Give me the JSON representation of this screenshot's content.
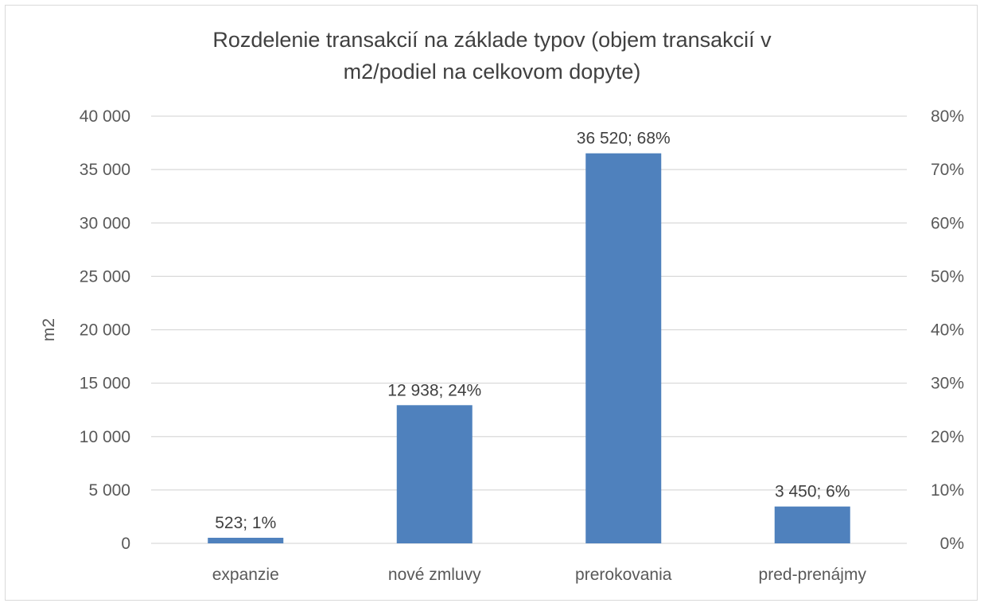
{
  "chart_data": {
    "type": "bar",
    "title": "Rozdelenie transakcií na základe typov (objem transakcií v\nm2/podiel na celkovom dopyte)",
    "categories": [
      "expanzie",
      "nové zmluvy",
      "prerokovania",
      "pred-prenájmy"
    ],
    "values": [
      523,
      12938,
      36520,
      3450
    ],
    "shares": [
      1,
      24,
      68,
      6
    ],
    "data_labels": [
      "523; 1%",
      "12 938; 24%",
      "36 520; 68%",
      "3 450; 6%"
    ],
    "ylabel": "m2",
    "ylim": [
      0,
      40000
    ],
    "y_ticks": [
      0,
      5000,
      10000,
      15000,
      20000,
      25000,
      30000,
      35000,
      40000
    ],
    "y_tick_labels": [
      "0",
      "5 000",
      "10 000",
      "15 000",
      "20 000",
      "25 000",
      "30 000",
      "35 000",
      "40 000"
    ],
    "y2lim": [
      0,
      80
    ],
    "y2_ticks": [
      0,
      10,
      20,
      30,
      40,
      50,
      60,
      70,
      80
    ],
    "y2_tick_labels": [
      "0%",
      "10%",
      "20%",
      "30%",
      "40%",
      "50%",
      "60%",
      "70%",
      "80%"
    ],
    "grid": true,
    "legend": "none",
    "bar_color": "#4f81bd",
    "grid_color": "#d9d9d9"
  }
}
